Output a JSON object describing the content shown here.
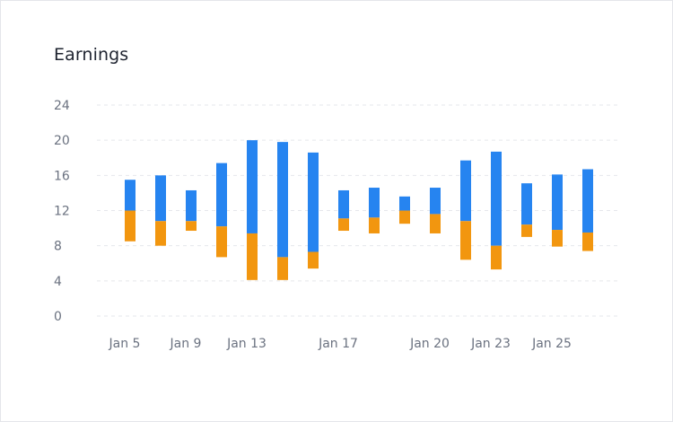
{
  "title": "Earnings",
  "colors": {
    "upper": "#2684f0",
    "lower": "#f2960f",
    "grid": "#e5e7eb",
    "tick": "#6b7280"
  },
  "chart_data": {
    "type": "bar",
    "subtype": "stacked-floating-range",
    "title": "Earnings",
    "ylim": [
      0,
      24
    ],
    "yticks": [
      0,
      4,
      8,
      12,
      16,
      20,
      24
    ],
    "grid": true,
    "xtick_labels": [
      "Jan 5",
      "Jan 9",
      "Jan 13",
      "Jan 17",
      "Jan 20",
      "Jan 23",
      "Jan 25"
    ],
    "xtick_bar_index": [
      0,
      2,
      4,
      7,
      10,
      12,
      14
    ],
    "bars": [
      {
        "low": 8.5,
        "mid": 12.0,
        "high": 15.5
      },
      {
        "low": 8.0,
        "mid": 10.8,
        "high": 16.0
      },
      {
        "low": 9.7,
        "mid": 10.8,
        "high": 14.3
      },
      {
        "low": 6.7,
        "mid": 10.2,
        "high": 17.4
      },
      {
        "low": 4.1,
        "mid": 9.4,
        "high": 20.0
      },
      {
        "low": 4.1,
        "mid": 6.7,
        "high": 19.8
      },
      {
        "low": 5.4,
        "mid": 7.3,
        "high": 18.6
      },
      {
        "low": 9.7,
        "mid": 11.1,
        "high": 14.3
      },
      {
        "low": 9.4,
        "mid": 11.2,
        "high": 14.6
      },
      {
        "low": 10.5,
        "mid": 12.0,
        "high": 13.6
      },
      {
        "low": 9.4,
        "mid": 11.6,
        "high": 14.6
      },
      {
        "low": 6.4,
        "mid": 10.8,
        "high": 17.7
      },
      {
        "low": 5.3,
        "mid": 8.0,
        "high": 18.7
      },
      {
        "low": 9.0,
        "mid": 10.4,
        "high": 15.1
      },
      {
        "low": 7.9,
        "mid": 9.8,
        "high": 16.1
      },
      {
        "low": 7.4,
        "mid": 9.5,
        "high": 16.7
      }
    ]
  }
}
